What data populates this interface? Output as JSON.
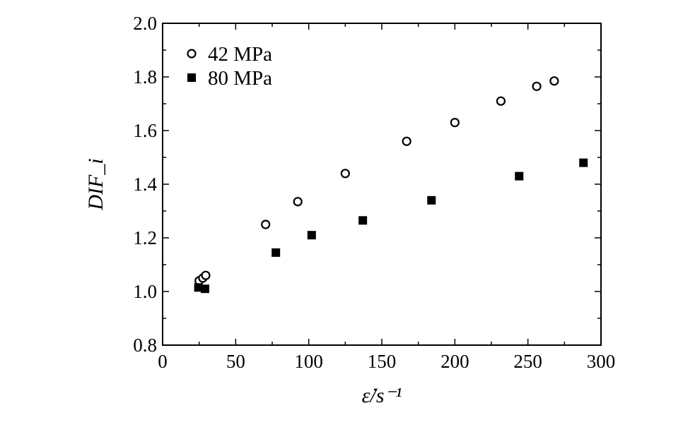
{
  "chart_data": {
    "type": "scatter",
    "xlabel": "ε̇/s⁻¹",
    "ylabel": "DIF_i",
    "xlim": [
      0,
      300
    ],
    "ylim": [
      0.8,
      2.0
    ],
    "xticks": [
      "0",
      "50",
      "100",
      "150",
      "200",
      "250",
      "300"
    ],
    "yticks": [
      "0.8",
      "1.0",
      "1.2",
      "1.4",
      "1.6",
      "1.8",
      "2.0"
    ],
    "grid": false,
    "legend_position": "top-left",
    "series": [
      {
        "name": "42 MPa",
        "marker": "open-circle",
        "color": "#000000",
        "points": [
          [
            25,
            1.04
          ],
          [
            27.5,
            1.05
          ],
          [
            29.5,
            1.06
          ],
          [
            70.5,
            1.25
          ],
          [
            92.5,
            1.335
          ],
          [
            125,
            1.44
          ],
          [
            167,
            1.56
          ],
          [
            200,
            1.63
          ],
          [
            231.5,
            1.71
          ],
          [
            256,
            1.765
          ],
          [
            268,
            1.785
          ]
        ]
      },
      {
        "name": "80 MPa",
        "marker": "filled-square",
        "color": "#000000",
        "points": [
          [
            24.5,
            1.015
          ],
          [
            29,
            1.01
          ],
          [
            77.5,
            1.145
          ],
          [
            102,
            1.21
          ],
          [
            137,
            1.265
          ],
          [
            184,
            1.34
          ],
          [
            244,
            1.43
          ],
          [
            288,
            1.48
          ]
        ]
      }
    ]
  }
}
